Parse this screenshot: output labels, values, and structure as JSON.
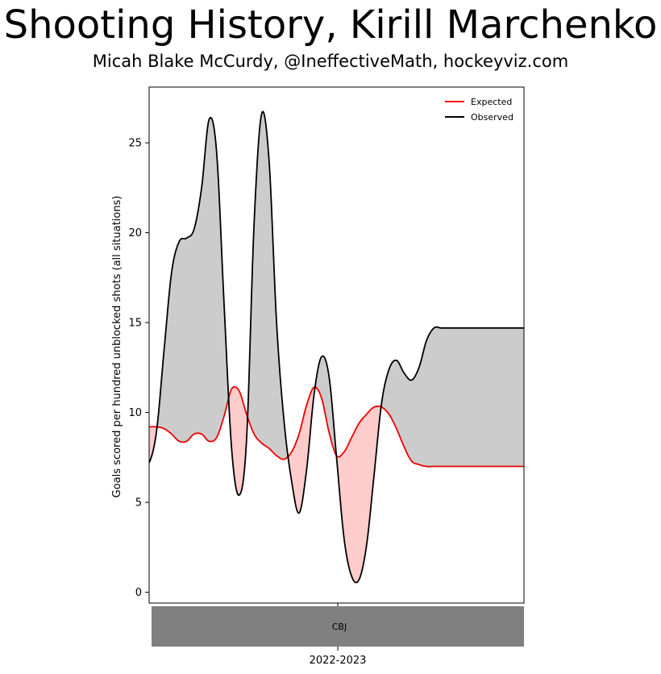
{
  "title": "Shooting History, Kirill Marchenko",
  "subtitle": "Micah Blake McCurdy, @IneffectiveMath, hockeyviz.com",
  "chart_data": {
    "type": "line",
    "ylabel": "Goals scored per hundred unblocked shots (all situations)",
    "ylim": [
      -0.6,
      28.1
    ],
    "yticks": [
      0,
      5,
      10,
      15,
      20,
      25
    ],
    "x": [
      0,
      0.02,
      0.04,
      0.06,
      0.08,
      0.1,
      0.12,
      0.14,
      0.16,
      0.18,
      0.2,
      0.22,
      0.24,
      0.26,
      0.28,
      0.3,
      0.32,
      0.34,
      0.36,
      0.38,
      0.4,
      0.42,
      0.44,
      0.46,
      0.48,
      0.5,
      0.52,
      0.54,
      0.56,
      0.58,
      0.6,
      0.62,
      0.64,
      0.66,
      0.68,
      0.7,
      0.72,
      0.74,
      0.76,
      0.78,
      0.8,
      0.82,
      0.84,
      0.86,
      0.88,
      0.9,
      0.92,
      0.94,
      0.96,
      0.98,
      1.0
    ],
    "series": [
      {
        "name": "Expected",
        "color": "#ee0000",
        "values": [
          9.2,
          9.2,
          9.1,
          8.8,
          8.4,
          8.4,
          8.8,
          8.8,
          8.4,
          8.6,
          9.8,
          11.3,
          11.2,
          9.9,
          8.8,
          8.3,
          8.0,
          7.6,
          7.4,
          7.8,
          8.8,
          10.4,
          11.4,
          10.8,
          8.9,
          7.6,
          7.8,
          8.6,
          9.4,
          9.9,
          10.3,
          10.3,
          9.9,
          9.1,
          8.1,
          7.3,
          7.1,
          7.0,
          7.0,
          7.0,
          7.0,
          7.0,
          7.0,
          7.0,
          7.0,
          7.0,
          7.0,
          7.0,
          7.0,
          7.0,
          7.0
        ]
      },
      {
        "name": "Observed",
        "color": "#000000",
        "values": [
          7.2,
          9.0,
          13.5,
          17.8,
          19.5,
          19.7,
          20.2,
          22.5,
          26.3,
          24.5,
          16.0,
          8.0,
          5.4,
          8.5,
          20.5,
          26.6,
          24.0,
          15.0,
          9.5,
          6.2,
          4.4,
          6.8,
          11.0,
          13.1,
          12.0,
          7.5,
          3.0,
          0.9,
          0.7,
          2.6,
          6.5,
          10.5,
          12.4,
          12.9,
          12.2,
          11.8,
          12.5,
          14.0,
          14.7,
          14.7,
          14.7,
          14.7,
          14.7,
          14.7,
          14.7,
          14.7,
          14.7,
          14.7,
          14.7,
          14.7,
          14.7
        ]
      }
    ],
    "legend": {
      "placement": "top-right"
    },
    "team_band": {
      "label": "CBJ",
      "color": "#808080"
    },
    "season_label": "2022-2023",
    "fill_observed_above_color": "#cccccc",
    "fill_expected_above_color": "#ffcccc",
    "grid": false
  }
}
